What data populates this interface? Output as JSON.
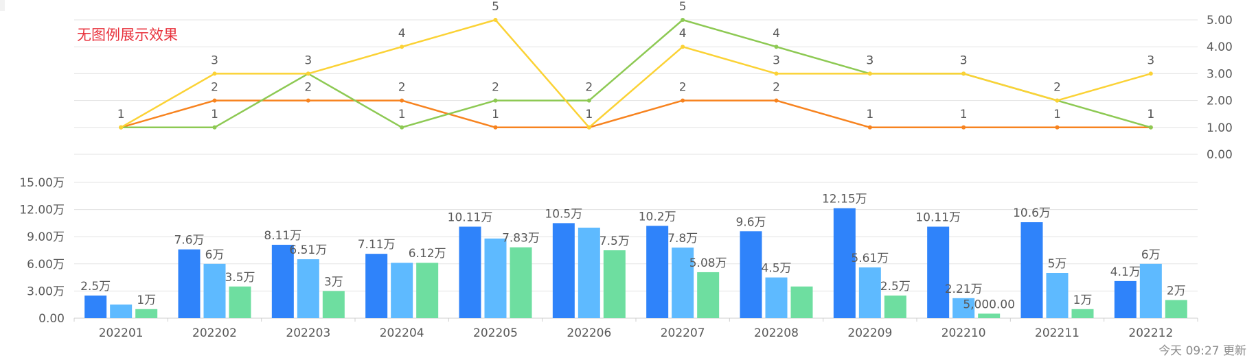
{
  "note": "无图例展示效果",
  "footer": "今天 09:27 更新",
  "colors": {
    "line_orange": "#f7831f",
    "line_green": "#8dc953",
    "line_yellow": "#fbd235",
    "bar_blue": "#2f83fa",
    "bar_lightblue": "#5ebaff",
    "bar_green": "#6edea0",
    "note_red": "#e8323c"
  },
  "chart_data": [
    {
      "type": "line",
      "categories": [
        "202201",
        "202202",
        "202203",
        "202204",
        "202205",
        "202206",
        "202207",
        "202208",
        "202209",
        "202210",
        "202211",
        "202212"
      ],
      "series": [
        {
          "color": "orange",
          "values": [
            1,
            2,
            2,
            2,
            1,
            1,
            2,
            2,
            1,
            1,
            1,
            1
          ]
        },
        {
          "color": "green",
          "values": [
            1,
            1,
            3,
            1,
            2,
            2,
            5,
            4,
            3,
            3,
            2,
            1
          ]
        },
        {
          "color": "yellow",
          "values": [
            1,
            3,
            3,
            4,
            5,
            1,
            4,
            3,
            3,
            3,
            2,
            3
          ]
        }
      ],
      "y_axis_position": "right",
      "yticks": [
        "0.00",
        "1.00",
        "2.00",
        "3.00",
        "4.00",
        "5.00"
      ],
      "ylim": [
        0,
        5
      ],
      "grid": true,
      "data_labels": [
        {
          "series": 0,
          "labels": [
            "",
            "2",
            "2",
            "2",
            "1",
            "1",
            "2",
            "2",
            "1",
            "1",
            "1",
            "1"
          ]
        },
        {
          "series": 1,
          "labels": [
            "",
            "1",
            "",
            "1",
            "2",
            "2",
            "5",
            "4",
            "3",
            "3",
            "2",
            "1"
          ]
        },
        {
          "series": 2,
          "labels": [
            "1",
            "3",
            "3",
            "4",
            "5",
            "1",
            "4",
            "3",
            "3",
            "3",
            "",
            "3"
          ]
        }
      ]
    },
    {
      "type": "bar",
      "categories": [
        "202201",
        "202202",
        "202203",
        "202204",
        "202205",
        "202206",
        "202207",
        "202208",
        "202209",
        "202210",
        "202211",
        "202212"
      ],
      "series": [
        {
          "color": "blue",
          "values": [
            25000,
            76000,
            81100,
            71100,
            101100,
            105000,
            102000,
            96000,
            121500,
            101100,
            106000,
            41000
          ]
        },
        {
          "color": "lightblue",
          "values": [
            15000,
            60000,
            65100,
            61200,
            88000,
            100000,
            78000,
            45000,
            56100,
            22100,
            50000,
            60000
          ]
        },
        {
          "color": "green",
          "values": [
            10000,
            35000,
            30000,
            61200,
            78300,
            75000,
            50800,
            35000,
            25000,
            5000,
            10000,
            20000
          ]
        }
      ],
      "y_axis_position": "left",
      "yticks": [
        "0.00",
        "3.00万",
        "6.00万",
        "9.00万",
        "12.00万",
        "15.00万"
      ],
      "ylim": [
        0,
        150000
      ],
      "grid": true,
      "data_labels": [
        {
          "series": 0,
          "labels": [
            "2.5万",
            "7.6万",
            "8.11万",
            "7.11万",
            "10.11万",
            "10.5万",
            "10.2万",
            "9.6万",
            "12.15万",
            "10.11万",
            "10.6万",
            "4.1万"
          ]
        },
        {
          "series": 1,
          "labels": [
            "",
            "6万",
            "6.51万",
            "",
            "",
            "",
            "7.8万",
            "4.5万",
            "5.61万",
            "2.21万",
            "5万",
            "6万"
          ]
        },
        {
          "series": 2,
          "labels": [
            "1万",
            "3.5万",
            "3万",
            "6.12万",
            "7.83万",
            "7.5万",
            "5.08万",
            "",
            "2.5万",
            "5,000.00",
            "1万",
            "2万"
          ]
        }
      ]
    }
  ]
}
